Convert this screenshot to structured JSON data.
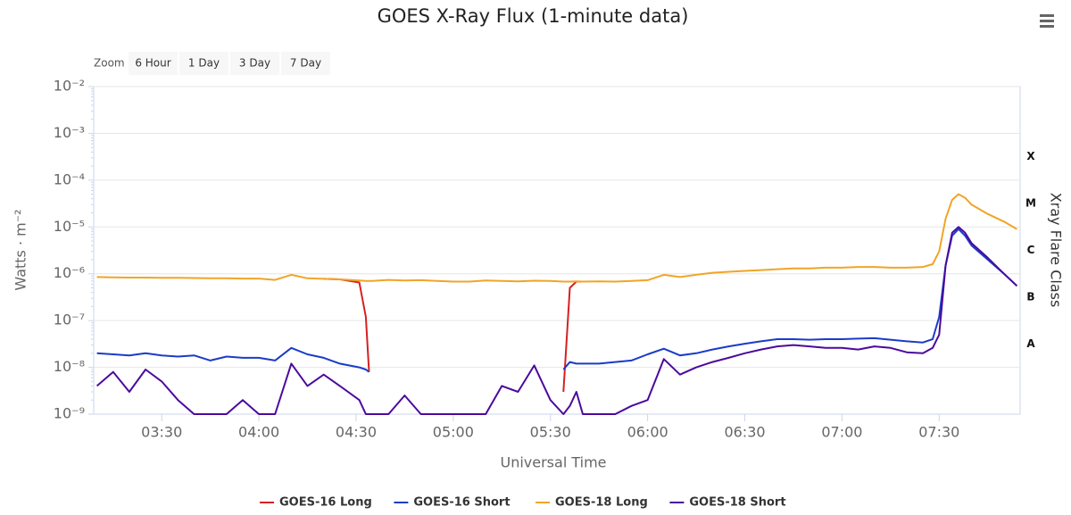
{
  "chart_data": {
    "type": "line",
    "title": "GOES X-Ray Flux (1-minute data)",
    "zoom": {
      "label": "Zoom",
      "buttons": [
        "6 Hour",
        "1 Day",
        "3 Day",
        "7 Day"
      ]
    },
    "x_label": "Universal Time",
    "y_label": "Watts · m⁻²",
    "y2_label": "Xray Flare Class",
    "log_y": true,
    "grid": true,
    "legend": "bottom",
    "xlim": [
      "03:09",
      "07:55"
    ],
    "xticks": [
      "03:30",
      "04:00",
      "04:30",
      "05:00",
      "05:30",
      "06:00",
      "06:30",
      "07:00",
      "07:30"
    ],
    "ylim": [
      1e-09,
      0.01
    ],
    "yticks": [
      {
        "value": 1e-09,
        "label": "10⁻⁹"
      },
      {
        "value": 1e-08,
        "label": "10⁻⁸"
      },
      {
        "value": 1e-07,
        "label": "10⁻⁷"
      },
      {
        "value": 1e-06,
        "label": "10⁻⁶"
      },
      {
        "value": 1e-05,
        "label": "10⁻⁵"
      },
      {
        "value": 0.0001,
        "label": "10⁻⁴"
      },
      {
        "value": 0.001,
        "label": "10⁻³"
      },
      {
        "value": 0.01,
        "label": "10⁻²"
      }
    ],
    "y2_classes": [
      {
        "label": "A",
        "value": 1e-08
      },
      {
        "label": "B",
        "value": 1e-07
      },
      {
        "label": "C",
        "value": 1e-06
      },
      {
        "label": "M",
        "value": 1e-05
      },
      {
        "label": "X",
        "value": 0.0001
      }
    ],
    "x": [
      "03:10",
      "03:15",
      "03:20",
      "03:25",
      "03:30",
      "03:35",
      "03:40",
      "03:45",
      "03:50",
      "03:55",
      "04:00",
      "04:05",
      "04:10",
      "04:15",
      "04:20",
      "04:25",
      "04:31",
      "04:33",
      "04:34",
      "04:35",
      "04:40",
      "04:45",
      "04:50",
      "04:55",
      "05:00",
      "05:05",
      "05:10",
      "05:15",
      "05:20",
      "05:25",
      "05:30",
      "05:34",
      "05:36",
      "05:38",
      "05:40",
      "05:45",
      "05:50",
      "05:55",
      "06:00",
      "06:05",
      "06:10",
      "06:15",
      "06:20",
      "06:25",
      "06:30",
      "06:35",
      "06:40",
      "06:45",
      "06:50",
      "06:55",
      "07:00",
      "07:05",
      "07:10",
      "07:15",
      "07:20",
      "07:25",
      "07:28",
      "07:30",
      "07:32",
      "07:34",
      "07:36",
      "07:38",
      "07:40",
      "07:45",
      "07:50",
      "07:54"
    ],
    "series": [
      {
        "name": "GOES-16 Long",
        "color": "#d62020",
        "values": [
          null,
          null,
          null,
          null,
          null,
          null,
          null,
          null,
          null,
          null,
          null,
          null,
          null,
          null,
          7.8e-07,
          7.6e-07,
          6.5e-07,
          1.2e-07,
          8e-09,
          null,
          null,
          null,
          null,
          null,
          null,
          null,
          null,
          null,
          null,
          null,
          null,
          3e-09,
          5e-07,
          6.8e-07,
          6.8e-07,
          null,
          null,
          null,
          null,
          null,
          null,
          null,
          null,
          null,
          null,
          null,
          null,
          null,
          null,
          null,
          null,
          null,
          null,
          null,
          null,
          null,
          null,
          null,
          null,
          null,
          null,
          null,
          null,
          null,
          null,
          null
        ]
      },
      {
        "name": "GOES-16 Short",
        "color": "#1a3cc8",
        "values": [
          2e-08,
          1.9e-08,
          1.8e-08,
          2e-08,
          1.8e-08,
          1.7e-08,
          1.8e-08,
          1.4e-08,
          1.7e-08,
          1.6e-08,
          1.6e-08,
          1.4e-08,
          2.6e-08,
          1.9e-08,
          1.6e-08,
          1.2e-08,
          1e-08,
          9e-09,
          8e-09,
          null,
          null,
          null,
          null,
          null,
          null,
          null,
          null,
          null,
          null,
          null,
          null,
          9e-09,
          1.3e-08,
          1.2e-08,
          1.2e-08,
          1.2e-08,
          1.3e-08,
          1.4e-08,
          1.9e-08,
          2.5e-08,
          1.8e-08,
          2e-08,
          2.4e-08,
          2.8e-08,
          3.2e-08,
          3.6e-08,
          4e-08,
          4e-08,
          3.9e-08,
          4e-08,
          4e-08,
          4.1e-08,
          4.2e-08,
          3.9e-08,
          3.6e-08,
          3.4e-08,
          4e-08,
          1.2e-07,
          1.5e-06,
          6.5e-06,
          9e-06,
          6.5e-06,
          4e-06,
          2e-06,
          1e-06,
          5.5e-07
        ]
      },
      {
        "name": "GOES-18 Long",
        "color": "#f0a526",
        "values": [
          8.5e-07,
          8.4e-07,
          8.3e-07,
          8.3e-07,
          8.2e-07,
          8.2e-07,
          8.1e-07,
          8e-07,
          8e-07,
          7.9e-07,
          7.9e-07,
          7.4e-07,
          9.5e-07,
          8e-07,
          7.8e-07,
          7.6e-07,
          7.2e-07,
          7e-07,
          7e-07,
          7e-07,
          7.4e-07,
          7.2e-07,
          7.3e-07,
          7e-07,
          6.8e-07,
          6.8e-07,
          7.2e-07,
          7e-07,
          6.9e-07,
          7.1e-07,
          7e-07,
          6.8e-07,
          6.8e-07,
          6.9e-07,
          6.8e-07,
          6.9e-07,
          6.8e-07,
          7e-07,
          7.3e-07,
          9.5e-07,
          8.5e-07,
          9.5e-07,
          1.05e-06,
          1.1e-06,
          1.15e-06,
          1.2e-06,
          1.25e-06,
          1.3e-06,
          1.3e-06,
          1.35e-06,
          1.35e-06,
          1.4e-06,
          1.4e-06,
          1.35e-06,
          1.35e-06,
          1.4e-06,
          1.6e-06,
          3e-06,
          1.5e-05,
          3.8e-05,
          5e-05,
          4.2e-05,
          3e-05,
          1.9e-05,
          1.3e-05,
          9e-06
        ]
      },
      {
        "name": "GOES-18 Short",
        "color": "#4b0a9c",
        "values": [
          4e-09,
          8e-09,
          3e-09,
          9e-09,
          5e-09,
          2e-09,
          1e-09,
          1e-09,
          1e-09,
          2e-09,
          1e-09,
          1e-09,
          1.2e-08,
          4e-09,
          7e-09,
          4e-09,
          2e-09,
          1e-09,
          1e-09,
          1e-09,
          1e-09,
          2.5e-09,
          1e-09,
          1e-09,
          1e-09,
          1e-09,
          1e-09,
          4e-09,
          3e-09,
          1.1e-08,
          2e-09,
          1e-09,
          1.5e-09,
          3e-09,
          1e-09,
          1e-09,
          1e-09,
          1.5e-09,
          2e-09,
          1.5e-08,
          7e-09,
          1e-08,
          1.3e-08,
          1.6e-08,
          2e-08,
          2.4e-08,
          2.8e-08,
          3e-08,
          2.8e-08,
          2.6e-08,
          2.6e-08,
          2.4e-08,
          2.8e-08,
          2.6e-08,
          2.1e-08,
          2e-08,
          2.6e-08,
          5e-08,
          1.5e-06,
          7.5e-06,
          1e-05,
          7.5e-06,
          4.5e-06,
          2.2e-06,
          1e-06,
          5.5e-07
        ]
      }
    ]
  }
}
